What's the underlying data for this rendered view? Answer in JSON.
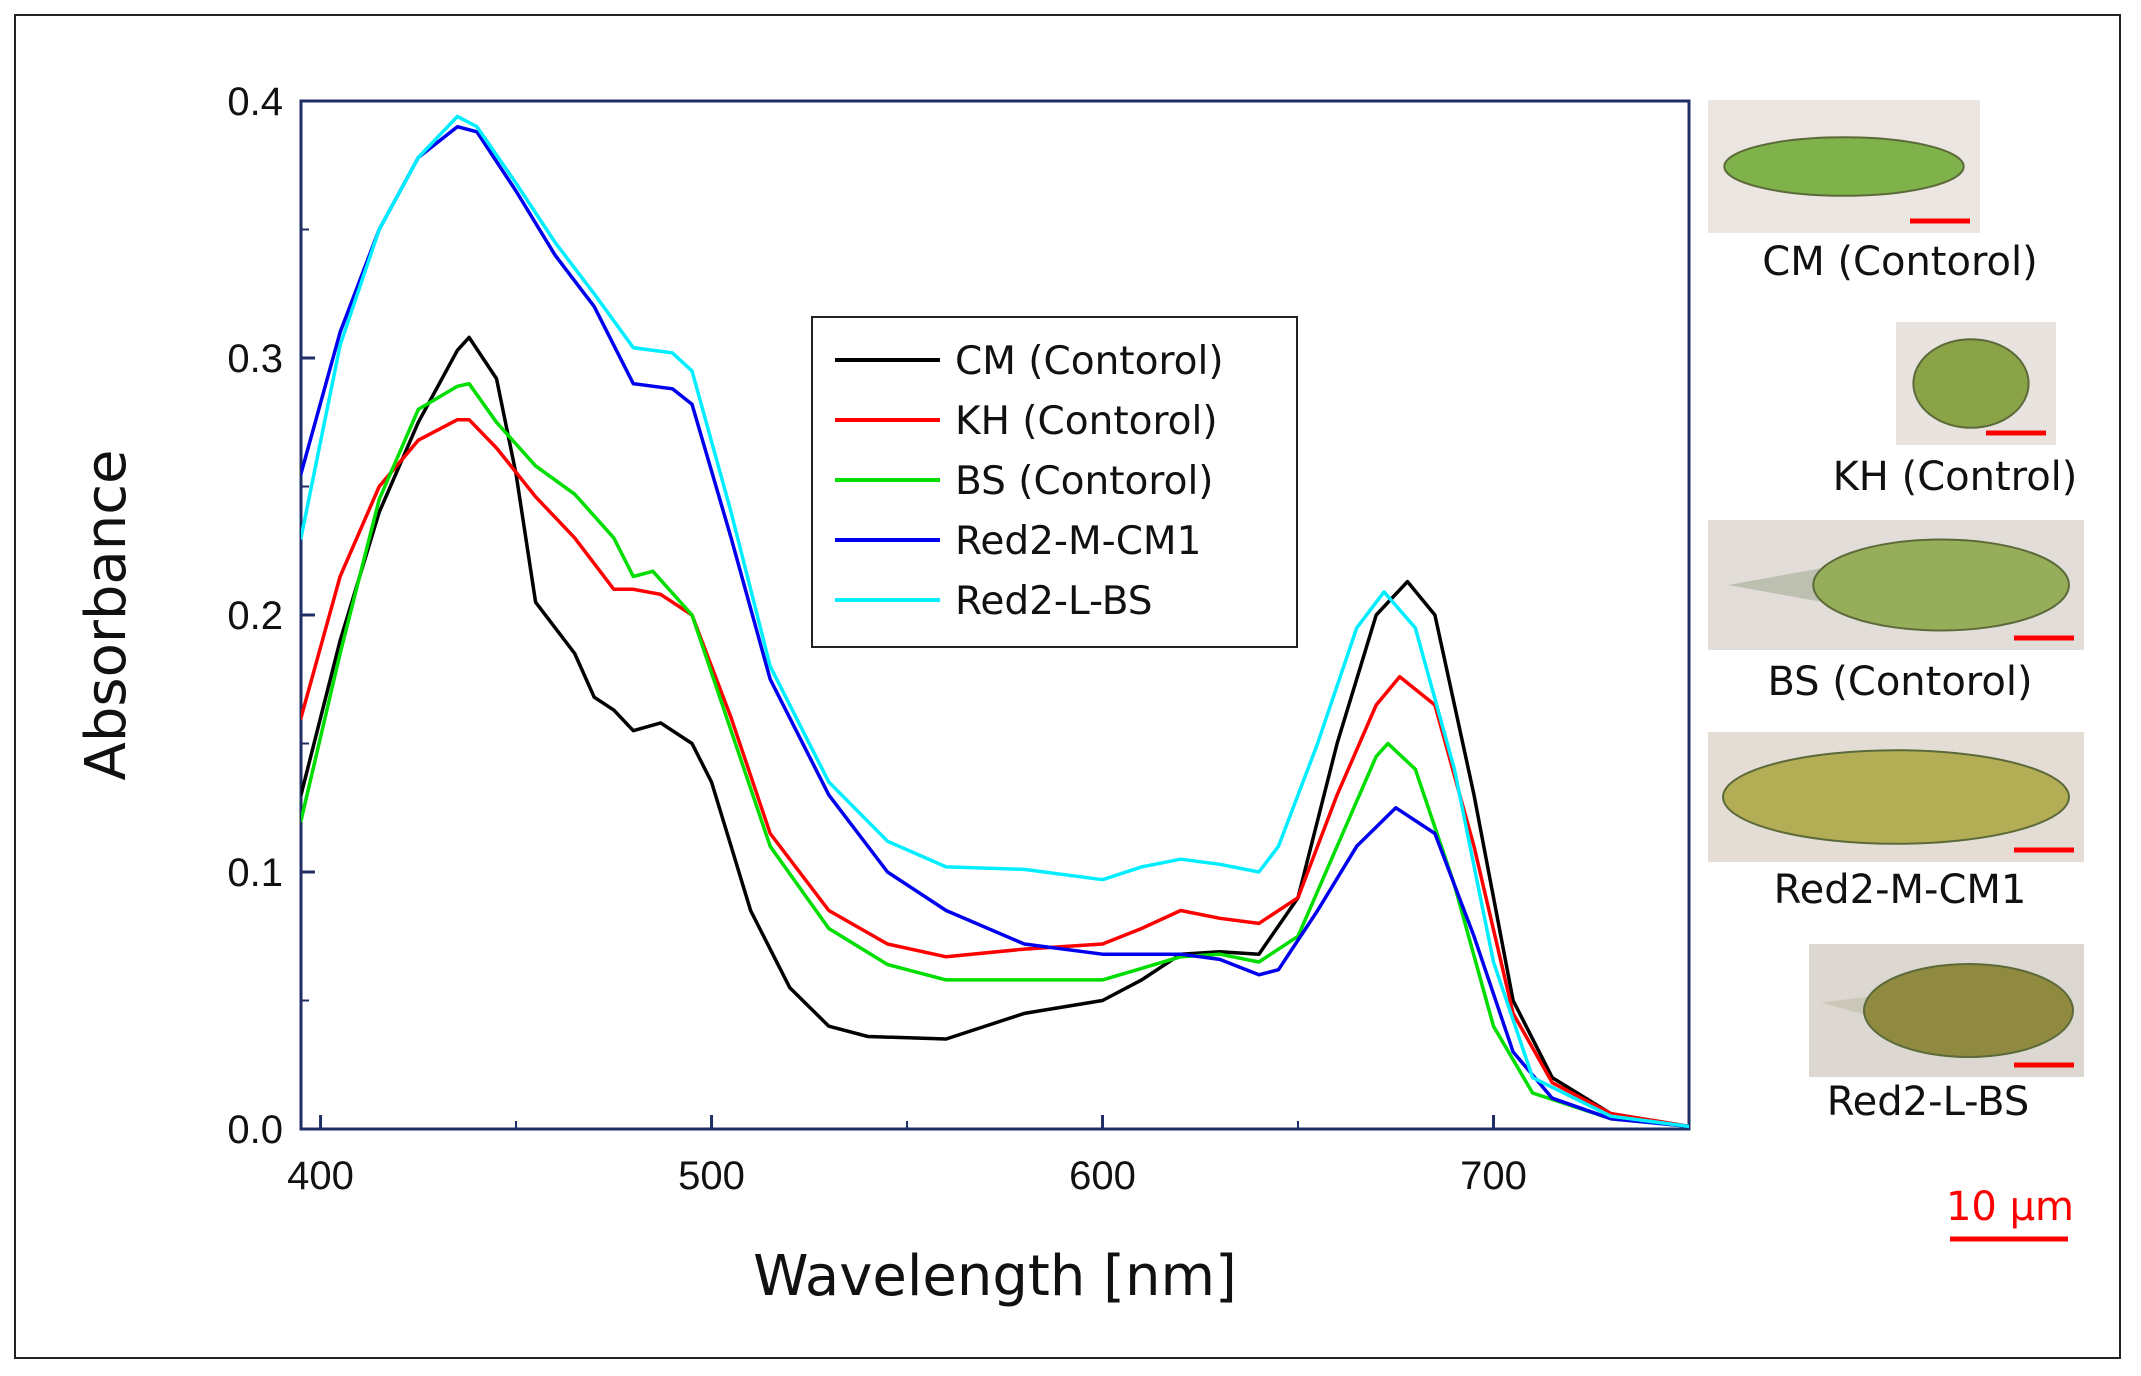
{
  "chart_data": {
    "type": "line",
    "title": "",
    "xlabel": "Wavelength [nm]",
    "ylabel": "Absorbance",
    "xlim": [
      395,
      750
    ],
    "ylim": [
      0.0,
      0.4
    ],
    "xticks": [
      400,
      500,
      600,
      700
    ],
    "xtick_labels": [
      "400",
      "500",
      "600",
      "700"
    ],
    "yticks": [
      0.0,
      0.1,
      0.2,
      0.3,
      0.4
    ],
    "ytick_labels": [
      "0.0",
      "0.1",
      "0.2",
      "0.3",
      "0.4"
    ],
    "grid": false,
    "legend_position": "center",
    "series": [
      {
        "name": "CM (Contorol)",
        "color": "#000000",
        "x": [
          395,
          405,
          415,
          425,
          435,
          438,
          445,
          450,
          455,
          465,
          470,
          475,
          480,
          487,
          495,
          500,
          505,
          510,
          520,
          530,
          540,
          560,
          580,
          600,
          610,
          620,
          630,
          640,
          650,
          660,
          670,
          678,
          685,
          695,
          705,
          715,
          730,
          750
        ],
        "y": [
          0.13,
          0.19,
          0.24,
          0.275,
          0.303,
          0.308,
          0.292,
          0.255,
          0.205,
          0.185,
          0.168,
          0.163,
          0.155,
          0.158,
          0.15,
          0.135,
          0.11,
          0.085,
          0.055,
          0.04,
          0.036,
          0.035,
          0.045,
          0.05,
          0.058,
          0.068,
          0.069,
          0.068,
          0.09,
          0.15,
          0.2,
          0.213,
          0.2,
          0.13,
          0.05,
          0.02,
          0.006,
          0.001
        ]
      },
      {
        "name": "KH (Contorol)",
        "color": "#ff0000",
        "x": [
          395,
          405,
          415,
          425,
          435,
          438,
          445,
          455,
          465,
          475,
          480,
          487,
          495,
          505,
          515,
          530,
          545,
          560,
          580,
          600,
          610,
          620,
          630,
          640,
          650,
          660,
          670,
          676,
          685,
          695,
          705,
          715,
          730,
          750
        ],
        "y": [
          0.16,
          0.215,
          0.25,
          0.268,
          0.276,
          0.276,
          0.265,
          0.246,
          0.23,
          0.21,
          0.21,
          0.208,
          0.2,
          0.16,
          0.115,
          0.085,
          0.072,
          0.067,
          0.07,
          0.072,
          0.078,
          0.085,
          0.082,
          0.08,
          0.09,
          0.13,
          0.165,
          0.176,
          0.165,
          0.11,
          0.045,
          0.018,
          0.006,
          0.001
        ]
      },
      {
        "name": "BS (Contorol)",
        "color": "#00dd00",
        "x": [
          395,
          405,
          415,
          425,
          435,
          438,
          445,
          455,
          465,
          475,
          480,
          485,
          495,
          505,
          515,
          530,
          545,
          560,
          580,
          600,
          620,
          630,
          640,
          650,
          660,
          670,
          673,
          680,
          690,
          700,
          710,
          730,
          750
        ],
        "y": [
          0.12,
          0.185,
          0.245,
          0.28,
          0.289,
          0.29,
          0.275,
          0.258,
          0.247,
          0.23,
          0.215,
          0.217,
          0.2,
          0.155,
          0.11,
          0.078,
          0.064,
          0.058,
          0.058,
          0.058,
          0.067,
          0.068,
          0.065,
          0.075,
          0.11,
          0.145,
          0.15,
          0.14,
          0.095,
          0.04,
          0.014,
          0.004,
          0.001
        ]
      },
      {
        "name": "Red2-M-CM1",
        "color": "#0000ee",
        "x": [
          395,
          405,
          415,
          425,
          435,
          440,
          450,
          460,
          470,
          480,
          490,
          495,
          505,
          515,
          530,
          545,
          560,
          580,
          600,
          620,
          630,
          640,
          645,
          655,
          665,
          675,
          685,
          695,
          705,
          715,
          730,
          750
        ],
        "y": [
          0.255,
          0.31,
          0.35,
          0.378,
          0.39,
          0.388,
          0.365,
          0.34,
          0.32,
          0.29,
          0.288,
          0.282,
          0.23,
          0.175,
          0.13,
          0.1,
          0.085,
          0.072,
          0.068,
          0.068,
          0.066,
          0.06,
          0.062,
          0.085,
          0.11,
          0.125,
          0.115,
          0.075,
          0.03,
          0.012,
          0.004,
          0.001
        ]
      },
      {
        "name": "Red2-L-BS",
        "color": "#00eeff",
        "x": [
          395,
          405,
          415,
          425,
          435,
          440,
          450,
          460,
          470,
          480,
          490,
          495,
          505,
          515,
          530,
          545,
          560,
          580,
          600,
          610,
          620,
          630,
          640,
          645,
          655,
          665,
          672,
          680,
          690,
          700,
          710,
          730,
          750
        ],
        "y": [
          0.23,
          0.305,
          0.35,
          0.378,
          0.394,
          0.39,
          0.368,
          0.345,
          0.325,
          0.304,
          0.302,
          0.295,
          0.24,
          0.18,
          0.135,
          0.112,
          0.102,
          0.101,
          0.097,
          0.102,
          0.105,
          0.103,
          0.1,
          0.11,
          0.15,
          0.195,
          0.209,
          0.195,
          0.14,
          0.065,
          0.02,
          0.005,
          0.001
        ]
      }
    ]
  },
  "cell_images": [
    {
      "caption": "CM (Contorol)",
      "shape": "elongated",
      "body_color": "#7fb24a",
      "bg_color": "#ebe6e1"
    },
    {
      "caption": "KH (Control)",
      "shape": "oval",
      "body_color": "#8aa347",
      "bg_color": "#e8e3df"
    },
    {
      "caption": "BS (Contorol)",
      "shape": "tailed",
      "body_color": "#96ad5a",
      "bg_color": "#e2ddd8"
    },
    {
      "caption": "Red2-M-CM1",
      "shape": "spindle",
      "body_color": "#b3ad55",
      "bg_color": "#e3ddd5"
    },
    {
      "caption": "Red2-L-BS",
      "shape": "tailed-oval",
      "body_color": "#8f8a3f",
      "bg_color": "#dcd7d0"
    }
  ],
  "scale_bar": {
    "label": "10 μm",
    "color": "#ff0000"
  }
}
